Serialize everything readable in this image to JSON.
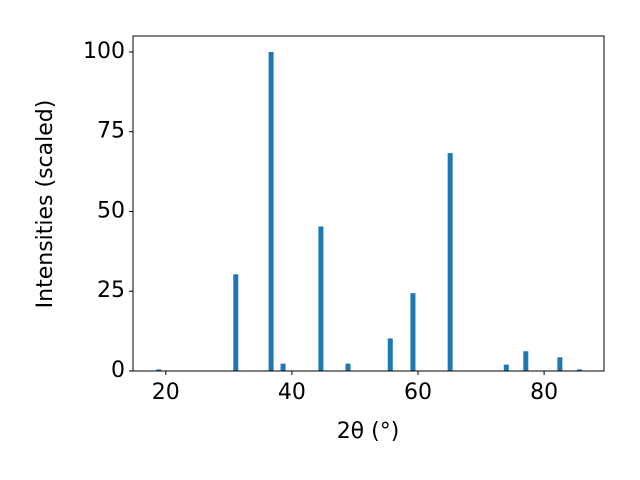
{
  "chart_data": {
    "type": "bar",
    "xlabel": "2θ (°)",
    "ylabel": "Intensities (scaled)",
    "x": [
      18.9,
      31.1,
      36.7,
      38.6,
      44.6,
      48.9,
      55.6,
      59.2,
      65.1,
      74.0,
      77.1,
      82.5,
      85.6
    ],
    "values": [
      0.5,
      30.3,
      100,
      2.3,
      45.3,
      2.3,
      10.2,
      24.4,
      68.3,
      2.0,
      6.2,
      4.3,
      0.5
    ],
    "color": "#1f77b4",
    "xlim": [
      14.8,
      89.5
    ],
    "xticks": [
      20,
      40,
      60,
      80
    ],
    "ylim": [
      0,
      105
    ],
    "yticks": [
      0,
      25,
      50,
      75,
      100
    ],
    "grid": false
  }
}
